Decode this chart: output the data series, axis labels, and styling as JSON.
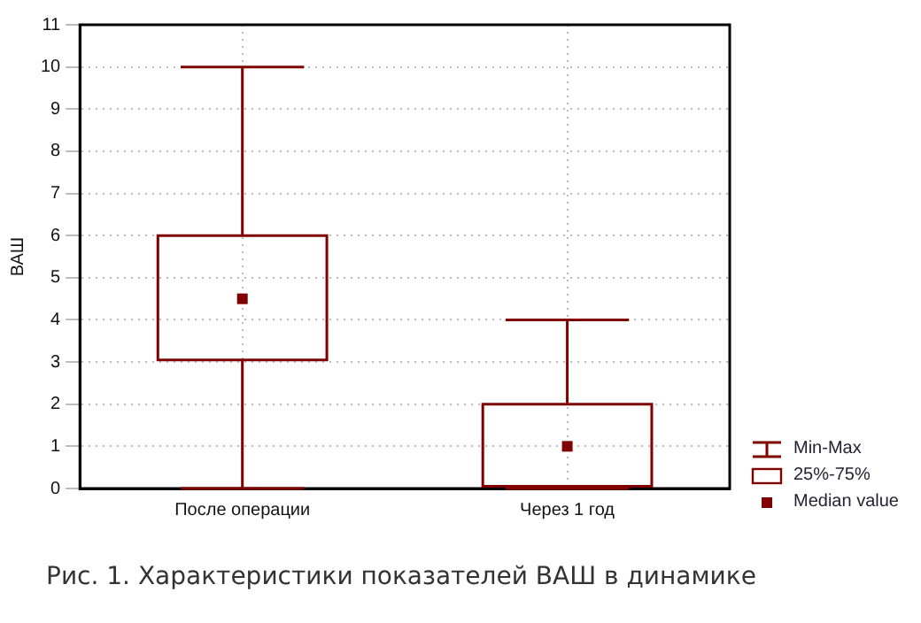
{
  "chart_data": {
    "type": "box",
    "title": "Рис. 1. Характеристики показателей ВАШ в динамике",
    "ylabel": "ВАШ",
    "categories": [
      "После операции",
      "Через 1 год"
    ],
    "color": "#800000",
    "boxes": [
      {
        "low": 0,
        "q1": 3.05,
        "median": 4.5,
        "q3": 6,
        "high": 10
      },
      {
        "low": 0,
        "q1": 0.05,
        "median": 1,
        "q3": 2,
        "high": 4
      }
    ],
    "ylim": [
      0,
      11
    ],
    "yticks": [
      0,
      1,
      2,
      3,
      4,
      5,
      6,
      7,
      8,
      9,
      10,
      11
    ],
    "grid": true,
    "annotations": [
      "Min-Max",
      "25%-75%",
      "Median value"
    ]
  }
}
